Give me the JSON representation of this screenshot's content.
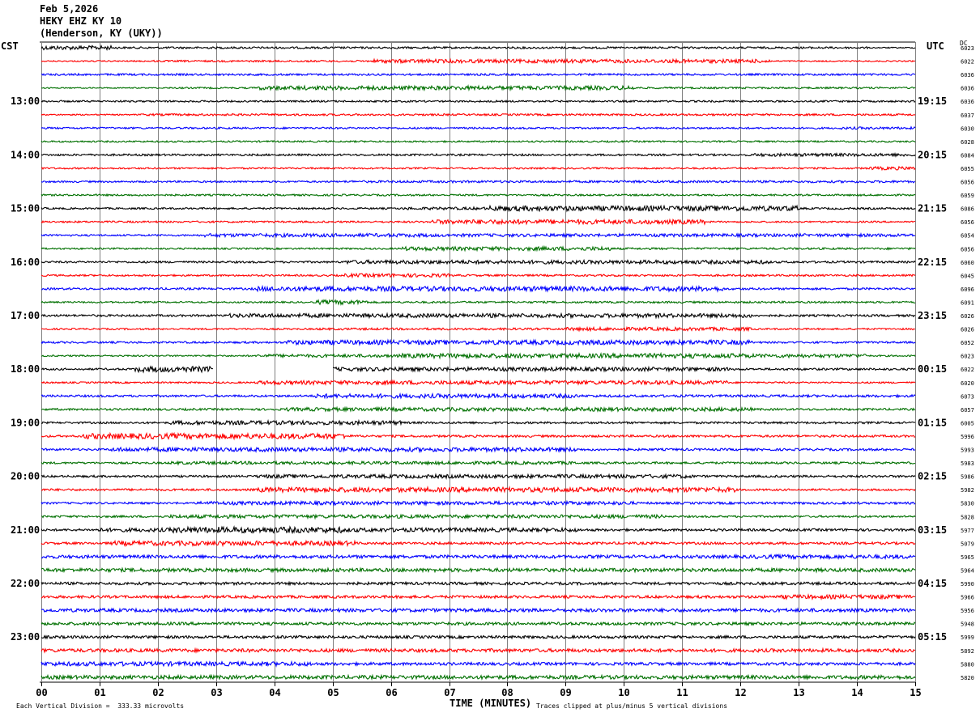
{
  "header": {
    "date": "Feb 5,2026",
    "station": "HEKY EHZ KY 10",
    "location": "(Henderson, KY (UKY))"
  },
  "left_zone_label": "CST",
  "right_zone_label": "UTC",
  "dc_label": "DC",
  "footer": {
    "scale_note": "Each Vertical Division =  333.33 microvolts",
    "xlabel": "TIME (MINUTES)",
    "clip_note": "Traces clipped at plus/minus 5 vertical divisions"
  },
  "colors": {
    "cycle": [
      "#000000",
      "#ff0000",
      "#0000ff",
      "#007000"
    ],
    "grid": "#808080"
  },
  "chart_data": {
    "type": "line",
    "title": "Feb 5,2026 HEKY EHZ KY 10 (Henderson, KY (UKY))",
    "xlabel": "TIME (MINUTES)",
    "xlim": [
      0,
      15
    ],
    "x_ticks": [
      "00",
      "01",
      "02",
      "03",
      "04",
      "05",
      "06",
      "07",
      "08",
      "09",
      "10",
      "11",
      "12",
      "13",
      "14",
      "15"
    ],
    "grid": true,
    "rows_per_hour": 4,
    "row_minutes": 15,
    "left_hour_labels": [
      "13:00",
      "14:00",
      "15:00",
      "16:00",
      "17:00",
      "18:00",
      "19:00",
      "20:00",
      "21:00",
      "22:00",
      "23:00"
    ],
    "right_hour_labels": [
      "19:15",
      "20:15",
      "21:15",
      "22:15",
      "23:15",
      "00:15",
      "01:15",
      "02:15",
      "03:15",
      "04:15",
      "05:15"
    ],
    "label_start_row": 4,
    "dc_offsets": [
      "6023",
      "6022",
      "6036",
      "6036",
      "6036",
      "6037",
      "6030",
      "6028",
      "6084",
      "6055",
      "6056",
      "6059",
      "6086",
      "6056",
      "6054",
      "6056",
      "6060",
      "6045",
      "6096",
      "6091",
      "6026",
      "6026",
      "6052",
      "6023",
      "6022",
      "6020",
      "6073",
      "6057",
      "6005",
      "5996",
      "5993",
      "5983",
      "5986",
      "5982",
      "5830",
      "5828",
      "5977",
      "5079",
      "5965",
      "5964",
      "5990",
      "5966",
      "5956",
      "5948",
      "5999",
      "5892",
      "5880",
      "5820"
    ],
    "activity": [
      [
        [
          0,
          1.2,
          2.5
        ],
        [
          1.2,
          14.2,
          1.2
        ],
        [
          14.2,
          15,
          0.7
        ]
      ],
      [
        [
          0,
          1.9,
          0.8
        ],
        [
          1.9,
          5.7,
          1.1
        ],
        [
          5.7,
          12.5,
          2.3
        ],
        [
          12.5,
          15,
          0.8
        ]
      ],
      [
        [
          0,
          15,
          1.2
        ]
      ],
      [
        [
          0,
          2.2,
          0.7
        ],
        [
          2.2,
          3.7,
          1.0
        ],
        [
          3.7,
          10.2,
          2.5
        ],
        [
          10.2,
          15,
          1.1
        ]
      ],
      [
        [
          0,
          15,
          1.1
        ]
      ],
      [
        [
          0,
          1.7,
          0.8
        ],
        [
          1.7,
          4.2,
          1.3
        ],
        [
          4.2,
          15,
          1.2
        ]
      ],
      [
        [
          0,
          13.7,
          1.1
        ],
        [
          13.7,
          15,
          1.5
        ]
      ],
      [
        [
          0,
          15,
          1.0
        ]
      ],
      [
        [
          0,
          12.2,
          1.2
        ],
        [
          12.2,
          15,
          1.9
        ]
      ],
      [
        [
          0,
          14.2,
          1.0
        ],
        [
          14.2,
          15,
          2.0
        ]
      ],
      [
        [
          0,
          5.2,
          1.1
        ],
        [
          5.2,
          15,
          1.4
        ]
      ],
      [
        [
          0,
          15,
          1.1
        ]
      ],
      [
        [
          0,
          6.2,
          1.1
        ],
        [
          6.2,
          7.7,
          1.7
        ],
        [
          7.7,
          13.0,
          3.2
        ],
        [
          13.0,
          15,
          1.2
        ]
      ],
      [
        [
          0,
          6.7,
          1.1
        ],
        [
          6.7,
          11.4,
          2.8
        ],
        [
          11.4,
          15,
          1.0
        ]
      ],
      [
        [
          0,
          2.8,
          1.1
        ],
        [
          2.8,
          6.7,
          2.2
        ],
        [
          6.7,
          15,
          1.9
        ]
      ],
      [
        [
          0,
          6.2,
          1.0
        ],
        [
          6.2,
          9.8,
          2.4
        ],
        [
          9.8,
          15,
          1.2
        ]
      ],
      [
        [
          0,
          5.2,
          1.2
        ],
        [
          5.2,
          12.5,
          2.3
        ],
        [
          12.5,
          15,
          1.3
        ]
      ],
      [
        [
          0,
          5.2,
          1.1
        ],
        [
          5.2,
          7.0,
          2.2
        ],
        [
          7.0,
          15,
          1.2
        ]
      ],
      [
        [
          0,
          3.7,
          1.3
        ],
        [
          3.7,
          11.7,
          3.0
        ],
        [
          11.7,
          15,
          1.3
        ]
      ],
      [
        [
          0,
          4.7,
          1.0
        ],
        [
          4.7,
          5.6,
          2.7
        ],
        [
          5.6,
          15,
          1.2
        ]
      ],
      [
        [
          0,
          3.2,
          1.3
        ],
        [
          3.2,
          12.2,
          2.5
        ],
        [
          12.2,
          15,
          1.3
        ]
      ],
      [
        [
          0,
          4.7,
          1.0
        ],
        [
          4.7,
          9.0,
          1.3
        ],
        [
          9.0,
          12.2,
          2.1
        ],
        [
          12.2,
          15,
          1.0
        ]
      ],
      [
        [
          0,
          4.2,
          1.2
        ],
        [
          4.2,
          12.2,
          2.8
        ],
        [
          12.2,
          15,
          1.2
        ]
      ],
      [
        [
          0,
          3.7,
          1.0
        ],
        [
          3.7,
          6.2,
          1.9
        ],
        [
          6.2,
          12.2,
          2.8
        ],
        [
          12.2,
          14.2,
          2.2
        ]
      ],
      [
        [
          0,
          1.6,
          1.2
        ],
        [
          1.6,
          2.95,
          3.5
        ],
        [
          5.0,
          11.8,
          2.4
        ],
        [
          11.8,
          15,
          1.3
        ]
      ],
      [
        [
          0,
          3.7,
          1.0
        ],
        [
          3.7,
          11.8,
          2.4
        ],
        [
          11.8,
          15,
          1.0
        ]
      ],
      [
        [
          0,
          4.7,
          1.3
        ],
        [
          4.7,
          9.2,
          2.6
        ],
        [
          9.2,
          15,
          1.5
        ]
      ],
      [
        [
          0,
          4.2,
          1.3
        ],
        [
          4.2,
          12.2,
          2.3
        ],
        [
          12.2,
          15,
          1.3
        ]
      ],
      [
        [
          0,
          2.2,
          1.2
        ],
        [
          2.2,
          6.2,
          2.5
        ],
        [
          6.2,
          15,
          1.3
        ]
      ],
      [
        [
          0,
          0.7,
          1.3
        ],
        [
          0.7,
          5.2,
          3.4
        ],
        [
          5.2,
          15,
          1.4
        ]
      ],
      [
        [
          0,
          1.2,
          1.3
        ],
        [
          1.2,
          9.2,
          2.6
        ],
        [
          9.2,
          15,
          1.4
        ]
      ],
      [
        [
          0,
          2.2,
          1.2
        ],
        [
          2.2,
          9.2,
          1.9
        ],
        [
          9.2,
          15,
          1.3
        ]
      ],
      [
        [
          0,
          3.7,
          1.3
        ],
        [
          3.7,
          11.2,
          2.3
        ],
        [
          11.2,
          15,
          1.4
        ]
      ],
      [
        [
          0,
          3.7,
          1.3
        ],
        [
          3.7,
          11.9,
          3.0
        ],
        [
          11.9,
          15,
          1.2
        ]
      ],
      [
        [
          0,
          2.7,
          1.2
        ],
        [
          2.7,
          10.2,
          2.2
        ],
        [
          10.2,
          15,
          1.4
        ]
      ],
      [
        [
          0,
          2.2,
          1.3
        ],
        [
          2.2,
          10.7,
          2.2
        ],
        [
          10.7,
          15,
          1.2
        ]
      ],
      [
        [
          0,
          0.9,
          1.4
        ],
        [
          0.9,
          2.2,
          2.3
        ],
        [
          2.2,
          5.2,
          3.7
        ],
        [
          5.2,
          9.2,
          2.5
        ],
        [
          9.2,
          15,
          1.5
        ]
      ],
      [
        [
          0,
          1.2,
          1.4
        ],
        [
          1.2,
          5.4,
          2.9
        ],
        [
          5.4,
          15,
          1.5
        ]
      ],
      [
        [
          0,
          12.2,
          2.0
        ],
        [
          12.2,
          15,
          2.5
        ]
      ],
      [
        [
          0,
          15,
          2.2
        ]
      ],
      [
        [
          0,
          15,
          1.7
        ]
      ],
      [
        [
          0,
          12.7,
          1.7
        ],
        [
          12.7,
          15,
          2.5
        ]
      ],
      [
        [
          0,
          15,
          2.1
        ]
      ],
      [
        [
          0,
          15,
          1.8
        ]
      ],
      [
        [
          0,
          15,
          1.7
        ]
      ],
      [
        [
          0,
          15,
          2.1
        ]
      ],
      [
        [
          0,
          4.7,
          2.6
        ],
        [
          4.7,
          15,
          1.8
        ]
      ],
      [
        [
          0,
          15,
          2.3
        ]
      ]
    ],
    "data_gap": {
      "row": 24,
      "x_start_min": 2.95,
      "x_end_min": 5.0
    }
  }
}
